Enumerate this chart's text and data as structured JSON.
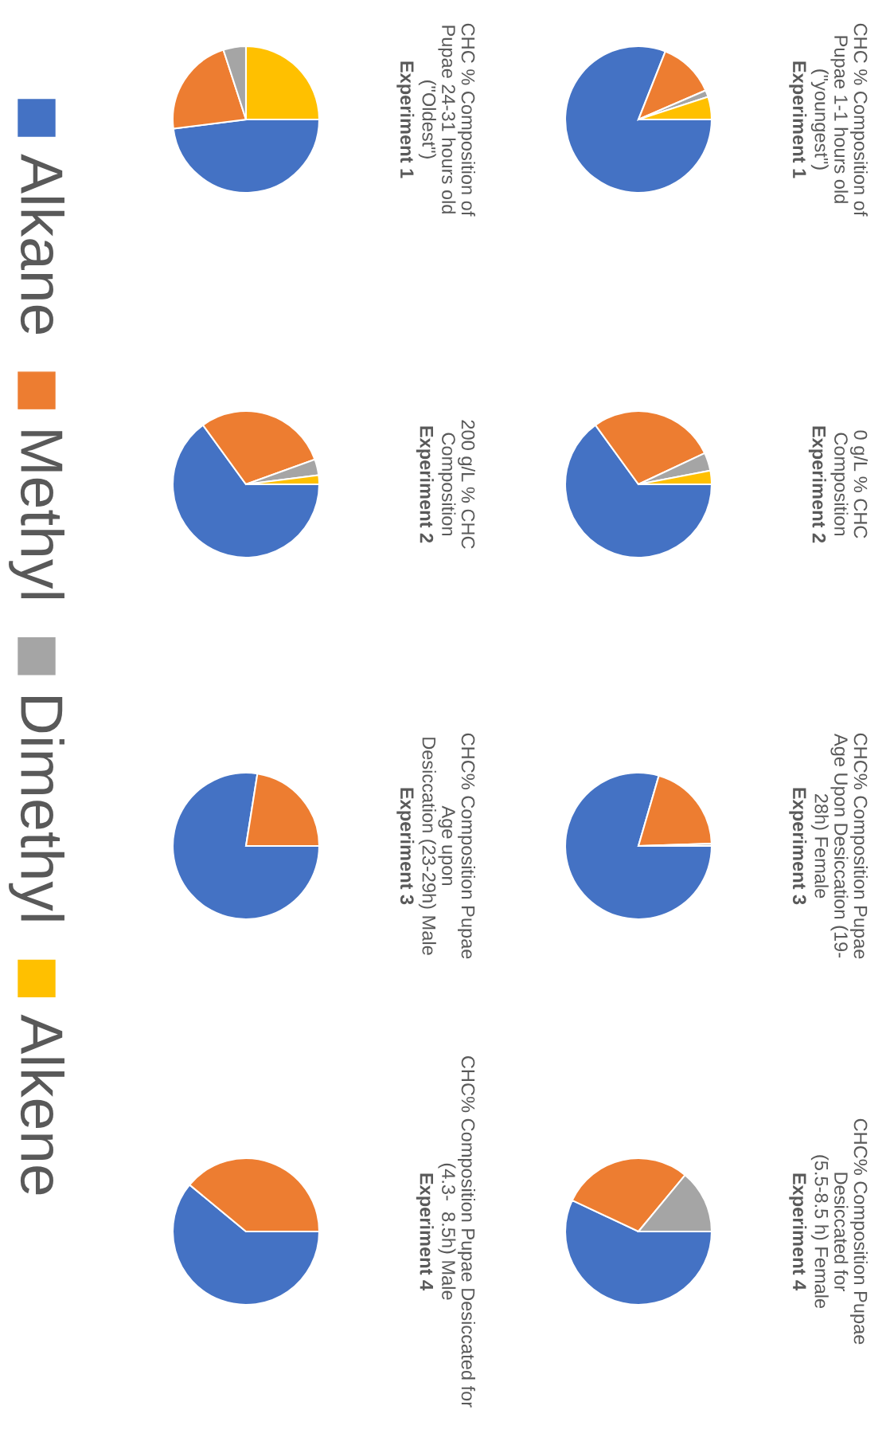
{
  "chart_data": [
    {
      "type": "pie",
      "title": "CHC % Composition of\nPupae 1-1 hours old\n(\"youngest\")",
      "subtitle": "Experiment 1",
      "categories": [
        "Alkane",
        "Methyl",
        "Dimethyl",
        "Alkene"
      ],
      "values": [
        81,
        12.5,
        1.5,
        5
      ],
      "colors": [
        "#4472c4",
        "#ed7d31",
        "#a5a5a5",
        "#ffc000"
      ],
      "legend": "bottom"
    },
    {
      "type": "pie",
      "title": "0 g/L % CHC\nComposition",
      "subtitle": "Experiment 2",
      "categories": [
        null,
        null,
        null,
        null
      ],
      "values": [
        65,
        28,
        4,
        3
      ],
      "colors": [
        "#4472c4",
        "#ed7d31",
        "#a5a5a5",
        "#ffc000"
      ]
    },
    {
      "type": "pie",
      "title": "CHC% Composition Pupae\nAge Upon Desiccation (19-\n28h) Female",
      "subtitle": "Experiment 3",
      "categories": [
        null,
        null,
        null
      ],
      "values": [
        79.5,
        20,
        0.5
      ],
      "colors": [
        "#4472c4",
        "#ed7d31",
        "#a5a5a5"
      ]
    },
    {
      "type": "pie",
      "title": "CHC% Composition Pupae\nDesiccated for\n(5.5-8.5 h) Female",
      "subtitle": "Experiment 4",
      "categories": [
        null,
        null,
        null
      ],
      "values": [
        57,
        29,
        14
      ],
      "colors": [
        "#4472c4",
        "#ed7d31",
        "#a5a5a5"
      ]
    },
    {
      "type": "pie",
      "title": "CHC % Composition of\nPupae 24-31 hours old\n(\"Oldest\")",
      "subtitle": "Experiment 1",
      "categories": [
        null,
        null,
        null,
        null
      ],
      "values": [
        48,
        22,
        5,
        25
      ],
      "colors": [
        "#4472c4",
        "#ed7d31",
        "#a5a5a5",
        "#ffc000"
      ]
    },
    {
      "type": "pie",
      "title": "200 g/L % CHC\nComposition",
      "subtitle": "Experiment 2",
      "categories": [
        null,
        null,
        null,
        null
      ],
      "values": [
        65,
        29.5,
        3.5,
        2
      ],
      "colors": [
        "#4472c4",
        "#ed7d31",
        "#a5a5a5",
        "#ffc000"
      ]
    },
    {
      "type": "pie",
      "title": "CHC% Composition Pupae\nAge upon\nDesiccation (23-29h) Male",
      "subtitle": "Experiment 3",
      "categories": [
        null,
        null
      ],
      "values": [
        77.5,
        22.5
      ],
      "colors": [
        "#4472c4",
        "#ed7d31"
      ]
    },
    {
      "type": "pie",
      "title": "CHC% Composition Pupae Desiccated for\n(4.3-  8.5h) Male",
      "subtitle": "Experiment 4",
      "categories": [
        null,
        null
      ],
      "values": [
        61,
        39
      ],
      "colors": [
        "#4472c4",
        "#ed7d31"
      ]
    }
  ]
}
